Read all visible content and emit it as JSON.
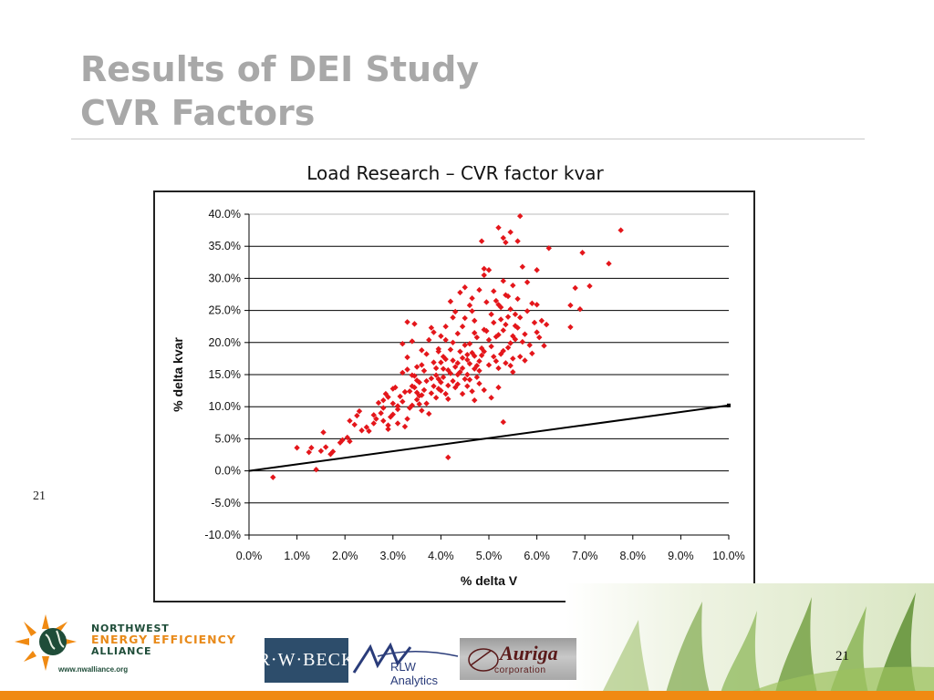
{
  "slide": {
    "title_line1": "Results of DEI Study",
    "title_line2": "CVR Factors",
    "side_number": "21",
    "page_number": "21"
  },
  "logos": {
    "nwea_line1": "NORTHWEST",
    "nwea_line2": "ENERGY EFFICIENCY",
    "nwea_line3": "ALLIANCE",
    "nwea_url": "www.nwalliance.org",
    "rwbeck": "R·W·BECK",
    "rlw": "RLW Analytics",
    "auriga_name": "Auriga",
    "auriga_sub": "corporation"
  },
  "colors": {
    "marker": "#e4161b",
    "trend_line": "#000000",
    "title_gray": "#a8a8a8",
    "accent_orange": "#f08a12"
  },
  "chart_data": {
    "type": "scatter",
    "title": "Load Research – CVR factor kvar",
    "xlabel": "% delta V",
    "ylabel": "% delta kvar",
    "xlim": [
      0,
      10
    ],
    "ylim": [
      -10,
      40
    ],
    "x_ticks": [
      "0.0%",
      "1.0%",
      "2.0%",
      "3.0%",
      "4.0%",
      "5.0%",
      "6.0%",
      "7.0%",
      "8.0%",
      "9.0%",
      "10.0%"
    ],
    "y_ticks": [
      "-10.0%",
      "-5.0%",
      "0.0%",
      "5.0%",
      "10.0%",
      "15.0%",
      "20.0%",
      "25.0%",
      "30.0%",
      "35.0%",
      "40.0%"
    ],
    "y_tick_values": [
      -10,
      -5,
      0,
      5,
      10,
      15,
      20,
      25,
      30,
      35,
      40
    ],
    "x_tick_values": [
      0,
      1,
      2,
      3,
      4,
      5,
      6,
      7,
      8,
      9,
      10
    ],
    "grid": "horizontal",
    "reference_line": {
      "x": [
        0,
        10
      ],
      "y": [
        0,
        10.2
      ]
    },
    "series": [
      {
        "marker": "diamond",
        "points": [
          [
            0.5,
            -1.0
          ],
          [
            1.0,
            3.6
          ],
          [
            1.25,
            2.9
          ],
          [
            1.3,
            3.6
          ],
          [
            1.4,
            0.2
          ],
          [
            1.5,
            3.1
          ],
          [
            1.55,
            6.0
          ],
          [
            1.6,
            3.7
          ],
          [
            1.7,
            2.6
          ],
          [
            1.75,
            3.0
          ],
          [
            1.9,
            4.4
          ],
          [
            1.95,
            4.8
          ],
          [
            2.05,
            5.2
          ],
          [
            2.1,
            4.6
          ],
          [
            2.1,
            7.8
          ],
          [
            2.2,
            7.2
          ],
          [
            2.25,
            8.6
          ],
          [
            2.3,
            9.3
          ],
          [
            2.35,
            6.3
          ],
          [
            2.45,
            6.8
          ],
          [
            2.5,
            6.2
          ],
          [
            2.6,
            7.4
          ],
          [
            2.65,
            8.1
          ],
          [
            2.75,
            9.0
          ],
          [
            2.8,
            11.0
          ],
          [
            2.85,
            12.0
          ],
          [
            2.9,
            7.1
          ],
          [
            2.95,
            8.4
          ],
          [
            3.0,
            10.5
          ],
          [
            3.05,
            13.0
          ],
          [
            3.1,
            9.6
          ],
          [
            3.15,
            11.6
          ],
          [
            3.2,
            15.3
          ],
          [
            3.25,
            6.9
          ],
          [
            3.3,
            8.1
          ],
          [
            3.35,
            12.4
          ],
          [
            3.4,
            13.2
          ],
          [
            3.45,
            14.8
          ],
          [
            3.5,
            16.2
          ],
          [
            3.55,
            10.4
          ],
          [
            3.6,
            11.8
          ],
          [
            3.65,
            15.6
          ],
          [
            3.7,
            18.2
          ],
          [
            3.75,
            20.4
          ],
          [
            3.8,
            22.3
          ],
          [
            3.85,
            13.2
          ],
          [
            3.9,
            16.0
          ],
          [
            3.95,
            19.0
          ],
          [
            4.0,
            12.5
          ],
          [
            4.05,
            14.6
          ],
          [
            4.1,
            17.4
          ],
          [
            4.15,
            11.2
          ],
          [
            4.2,
            15.2
          ],
          [
            4.25,
            20.0
          ],
          [
            4.3,
            13.0
          ],
          [
            4.35,
            16.8
          ],
          [
            4.4,
            18.6
          ],
          [
            4.45,
            22.5
          ],
          [
            4.5,
            14.3
          ],
          [
            4.55,
            17.3
          ],
          [
            4.6,
            19.8
          ],
          [
            4.65,
            24.9
          ],
          [
            4.7,
            15.9
          ],
          [
            4.75,
            20.8
          ],
          [
            4.8,
            13.6
          ],
          [
            4.85,
            18.0
          ],
          [
            4.9,
            22.0
          ],
          [
            4.95,
            26.3
          ],
          [
            5.0,
            16.5
          ],
          [
            5.05,
            19.4
          ],
          [
            5.1,
            23.1
          ],
          [
            5.15,
            17.1
          ],
          [
            5.2,
            21.2
          ],
          [
            5.25,
            25.5
          ],
          [
            5.3,
            18.7
          ],
          [
            5.35,
            22.8
          ],
          [
            5.4,
            27.2
          ],
          [
            5.45,
            16.4
          ],
          [
            5.5,
            21.0
          ],
          [
            5.55,
            24.4
          ],
          [
            3.7,
            10.5
          ],
          [
            3.8,
            14.4
          ],
          [
            3.9,
            11.4
          ],
          [
            4.0,
            13.8
          ],
          [
            4.05,
            17.8
          ],
          [
            4.1,
            12.0
          ],
          [
            4.15,
            15.7
          ],
          [
            4.2,
            18.9
          ],
          [
            4.25,
            14.0
          ],
          [
            4.3,
            16.2
          ],
          [
            4.35,
            13.5
          ],
          [
            4.4,
            15.4
          ],
          [
            4.45,
            17.6
          ],
          [
            4.5,
            19.6
          ],
          [
            4.55,
            15.0
          ],
          [
            4.6,
            16.7
          ],
          [
            4.65,
            18.4
          ],
          [
            4.7,
            21.5
          ],
          [
            4.75,
            14.6
          ],
          [
            4.8,
            17.1
          ],
          [
            3.3,
            17.7
          ],
          [
            3.4,
            20.2
          ],
          [
            3.45,
            22.9
          ],
          [
            3.5,
            11.1
          ],
          [
            3.55,
            13.8
          ],
          [
            3.6,
            9.4
          ],
          [
            3.65,
            12.6
          ],
          [
            3.75,
            8.9
          ],
          [
            3.85,
            16.9
          ],
          [
            3.95,
            14.3
          ],
          [
            2.8,
            9.8
          ],
          [
            2.9,
            6.5
          ],
          [
            3.0,
            12.8
          ],
          [
            3.1,
            7.4
          ],
          [
            3.2,
            19.8
          ],
          [
            3.3,
            23.2
          ],
          [
            3.4,
            10.2
          ],
          [
            3.5,
            14.1
          ],
          [
            2.7,
            10.6
          ],
          [
            2.6,
            8.7
          ],
          [
            4.0,
            21.0
          ],
          [
            4.1,
            22.5
          ],
          [
            4.2,
            26.4
          ],
          [
            4.3,
            24.8
          ],
          [
            4.4,
            27.8
          ],
          [
            4.5,
            28.6
          ],
          [
            4.6,
            25.8
          ],
          [
            4.7,
            23.4
          ],
          [
            4.8,
            28.2
          ],
          [
            4.9,
            30.5
          ],
          [
            5.0,
            31.3
          ],
          [
            5.1,
            28.0
          ],
          [
            5.2,
            25.9
          ],
          [
            5.3,
            29.6
          ],
          [
            5.4,
            24.0
          ],
          [
            5.5,
            28.9
          ],
          [
            5.6,
            26.8
          ],
          [
            5.7,
            31.8
          ],
          [
            5.8,
            29.4
          ],
          [
            5.9,
            26.1
          ],
          [
            5.0,
            20.4
          ],
          [
            5.1,
            17.8
          ],
          [
            5.2,
            16.0
          ],
          [
            5.3,
            21.9
          ],
          [
            5.4,
            19.2
          ],
          [
            5.5,
            17.5
          ],
          [
            5.6,
            22.3
          ],
          [
            5.7,
            20.1
          ],
          [
            5.8,
            24.9
          ],
          [
            5.9,
            18.3
          ],
          [
            6.0,
            21.6
          ],
          [
            6.1,
            23.4
          ],
          [
            6.2,
            22.8
          ],
          [
            6.0,
            31.3
          ],
          [
            6.25,
            34.7
          ],
          [
            5.85,
            19.6
          ],
          [
            5.75,
            17.2
          ],
          [
            6.0,
            25.9
          ],
          [
            5.35,
            35.6
          ],
          [
            4.85,
            35.8
          ],
          [
            5.2,
            37.9
          ],
          [
            5.3,
            36.3
          ],
          [
            5.45,
            37.2
          ],
          [
            5.65,
            39.7
          ],
          [
            5.6,
            35.8
          ],
          [
            4.9,
            31.5
          ],
          [
            6.95,
            34.0
          ],
          [
            7.5,
            32.3
          ],
          [
            7.75,
            37.5
          ],
          [
            6.8,
            28.5
          ],
          [
            7.1,
            28.8
          ],
          [
            6.7,
            25.8
          ],
          [
            6.9,
            25.2
          ],
          [
            6.7,
            22.4
          ],
          [
            5.3,
            7.6
          ],
          [
            4.15,
            2.1
          ],
          [
            4.7,
            11.0
          ],
          [
            4.9,
            12.6
          ],
          [
            5.05,
            11.4
          ],
          [
            5.2,
            13.0
          ],
          [
            5.5,
            15.4
          ],
          [
            5.65,
            17.8
          ],
          [
            4.5,
            23.8
          ],
          [
            4.65,
            26.9
          ],
          [
            4.35,
            21.4
          ],
          [
            4.25,
            23.9
          ],
          [
            4.1,
            20.4
          ],
          [
            3.95,
            18.6
          ],
          [
            3.85,
            21.6
          ],
          [
            3.6,
            16.5
          ],
          [
            3.5,
            12.2
          ],
          [
            3.4,
            14.9
          ],
          [
            3.3,
            15.8
          ],
          [
            3.2,
            10.8
          ],
          [
            3.1,
            10.1
          ],
          [
            3.0,
            8.8
          ],
          [
            2.9,
            11.5
          ],
          [
            2.8,
            7.8
          ],
          [
            4.45,
            12.0
          ],
          [
            4.55,
            13.2
          ],
          [
            4.65,
            12.4
          ],
          [
            4.75,
            16.4
          ],
          [
            4.85,
            19.1
          ],
          [
            4.95,
            21.8
          ],
          [
            5.05,
            24.4
          ],
          [
            5.15,
            20.9
          ],
          [
            5.25,
            18.2
          ],
          [
            5.35,
            16.8
          ],
          [
            5.45,
            19.9
          ],
          [
            5.55,
            22.6
          ],
          [
            4.05,
            15.9
          ],
          [
            4.15,
            13.3
          ],
          [
            4.25,
            17.2
          ],
          [
            4.35,
            15.0
          ],
          [
            4.45,
            16.0
          ],
          [
            4.55,
            18.1
          ],
          [
            4.6,
            14.2
          ],
          [
            4.7,
            17.9
          ],
          [
            4.8,
            15.6
          ],
          [
            4.9,
            18.6
          ],
          [
            3.95,
            12.8
          ],
          [
            4.0,
            16.9
          ],
          [
            3.9,
            14.9
          ],
          [
            3.8,
            12.1
          ],
          [
            3.7,
            14.0
          ],
          [
            3.6,
            18.8
          ],
          [
            3.55,
            11.7
          ],
          [
            3.45,
            13.0
          ],
          [
            3.35,
            9.8
          ],
          [
            3.25,
            12.3
          ],
          [
            5.95,
            23.1
          ],
          [
            6.05,
            20.8
          ],
          [
            6.15,
            19.5
          ],
          [
            5.75,
            21.3
          ],
          [
            5.65,
            23.9
          ],
          [
            5.55,
            20.5
          ],
          [
            5.45,
            25.2
          ],
          [
            5.35,
            27.4
          ],
          [
            5.25,
            23.6
          ],
          [
            5.15,
            26.5
          ]
        ]
      }
    ]
  }
}
